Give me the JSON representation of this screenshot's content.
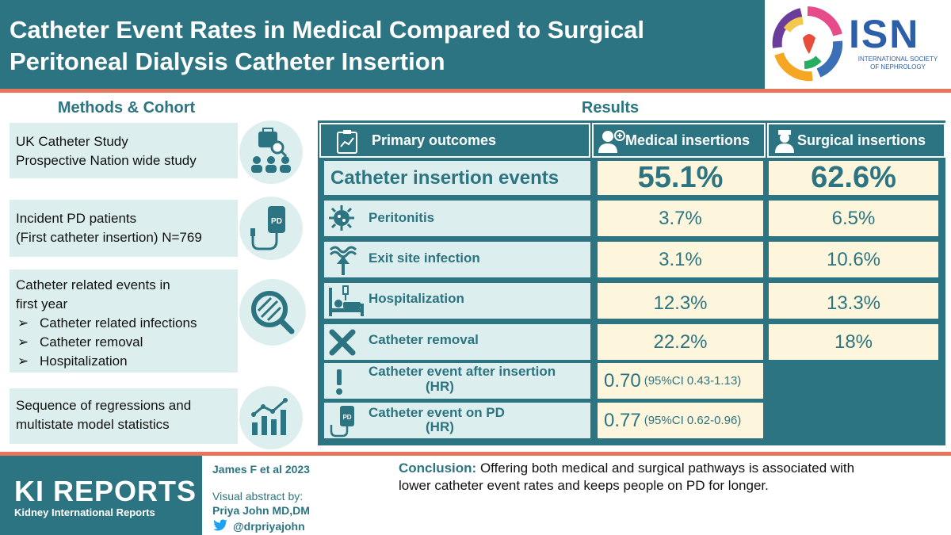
{
  "header": {
    "title_line1": "Catheter Event Rates in Medical Compared to Surgical",
    "title_line2": "Peritoneal Dialysis Catheter Insertion",
    "logo_text": "ISN",
    "logo_sub1": "INTERNATIONAL SOCIETY",
    "logo_sub2": "OF NEPHROLOGY"
  },
  "methods": {
    "title": "Methods & Cohort",
    "box1_line1": "UK Catheter Study",
    "box1_line2": "Prospective Nation wide study",
    "box2_line1": "Incident PD patients",
    "box2_line2": "(First catheter insertion) N=769",
    "box3_line1": "Catheter related events in",
    "box3_line2": "first year",
    "box3_bullets": [
      "Catheter related infections",
      "Catheter removal",
      "Hospitalization"
    ],
    "bullet_symbol": "➢",
    "box4_line1": "Sequence of regressions and",
    "box4_line2": "multistate model statistics"
  },
  "results": {
    "title": "Results",
    "col_outcome": "Primary outcomes",
    "col_medical": "Medical insertions",
    "col_surgical": "Surgical insertions",
    "rows": [
      {
        "label": "Catheter insertion events",
        "medical": "55.1%",
        "surgical": "62.6%"
      },
      {
        "label": "Peritonitis",
        "medical": "3.7%",
        "surgical": "6.5%"
      },
      {
        "label": "Exit site infection",
        "medical": "3.1%",
        "surgical": "10.6%"
      },
      {
        "label": "Hospitalization",
        "medical": "12.3%",
        "surgical": "13.3%"
      },
      {
        "label": "Catheter removal",
        "medical": "22.2%",
        "surgical": "18%"
      }
    ],
    "hr_rows": [
      {
        "label": "Catheter event after insertion",
        "sub": "(HR)",
        "value": "0.70",
        "ci": "(95%CI 0.43-1.13)"
      },
      {
        "label": "Catheter event on PD",
        "sub": "(HR)",
        "value": "0.77",
        "ci": "(95%CI 0.62-0.96)"
      }
    ]
  },
  "footer": {
    "brand": "KI REPORTS",
    "brand_sub": "Kidney International Reports",
    "citation": "James F et al 2023",
    "abstract_by": "Visual abstract by:",
    "author": "Priya John MD,DM",
    "handle": "@drpriyajohn",
    "conclusion_label": "Conclusion:",
    "conclusion_text1": " Offering both medical and surgical pathways is associated with",
    "conclusion_text2": "lower catheter event rates and keeps people on PD for longer."
  }
}
